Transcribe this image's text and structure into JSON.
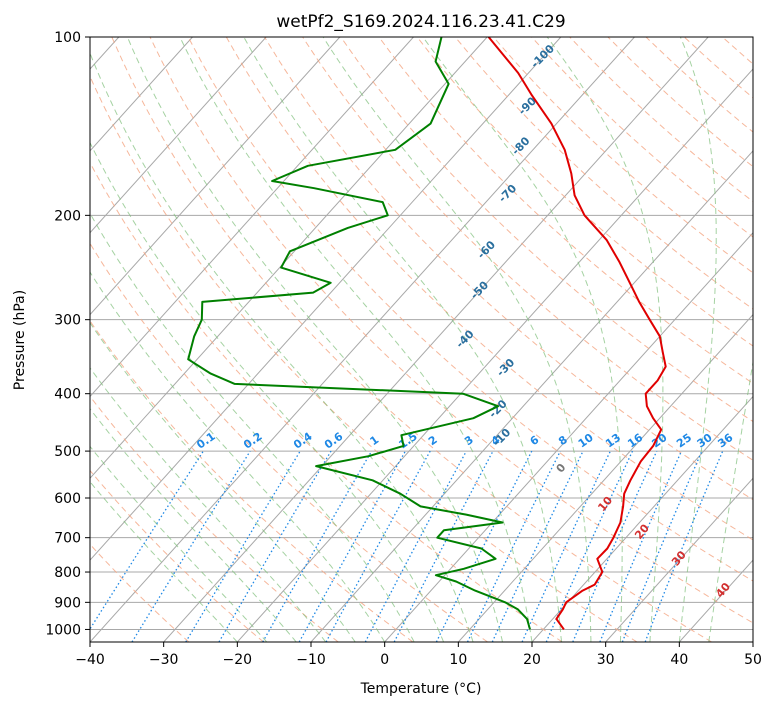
{
  "chart_data": {
    "type": "line",
    "subtype": "skew-T log-P diagram",
    "title": "wetPf2_S169.2024.116.23.41.C29",
    "xlabel": "Temperature (°C)",
    "ylabel": "Pressure (hPa)",
    "xlim": [
      -40,
      50
    ],
    "ylim": [
      1050,
      100
    ],
    "y_scale": "log",
    "grid": true,
    "x_ticks": [
      -40,
      -30,
      -20,
      -10,
      0,
      10,
      20,
      30,
      40,
      50
    ],
    "x_tick_labels": [
      "−40",
      "−30",
      "−20",
      "−10",
      "0",
      "10",
      "20",
      "30",
      "40",
      "50"
    ],
    "y_ticks": [
      1000,
      900,
      800,
      700,
      600,
      500,
      400,
      300,
      200,
      100
    ],
    "y_tick_labels": [
      "1000",
      "900",
      "800",
      "700",
      "600",
      "500",
      "400",
      "300",
      "200",
      "100"
    ],
    "series": [
      {
        "color": "#e00000",
        "points": [
          [
            1000,
            22.8
          ],
          [
            960,
            20.5
          ],
          [
            925,
            20.2
          ],
          [
            900,
            19.8
          ],
          [
            860,
            20.6
          ],
          [
            840,
            21.5
          ],
          [
            800,
            21.0
          ],
          [
            760,
            18.7
          ],
          [
            730,
            18.8
          ],
          [
            700,
            18.3
          ],
          [
            660,
            17.4
          ],
          [
            620,
            15.8
          ],
          [
            590,
            14.4
          ],
          [
            560,
            13.6
          ],
          [
            520,
            12.7
          ],
          [
            490,
            12.5
          ],
          [
            460,
            11.6
          ],
          [
            440,
            9.1
          ],
          [
            420,
            6.8
          ],
          [
            400,
            5.1
          ],
          [
            380,
            5.1
          ],
          [
            360,
            4.5
          ],
          [
            340,
            2.3
          ],
          [
            320,
            0.0
          ],
          [
            300,
            -3.4
          ],
          [
            280,
            -7.0
          ],
          [
            260,
            -10.6
          ],
          [
            240,
            -14.5
          ],
          [
            220,
            -19.0
          ],
          [
            200,
            -25.0
          ],
          [
            185,
            -28.8
          ],
          [
            170,
            -31.9
          ],
          [
            155,
            -35.7
          ],
          [
            140,
            -40.7
          ],
          [
            125,
            -47.0
          ],
          [
            115,
            -51.4
          ],
          [
            100,
            -59.8
          ]
        ]
      },
      {
        "color": "#008000",
        "points": [
          [
            1000,
            18.2
          ],
          [
            960,
            16.5
          ],
          [
            925,
            14.1
          ],
          [
            900,
            11.5
          ],
          [
            860,
            6.0
          ],
          [
            830,
            2.3
          ],
          [
            810,
            -1.2
          ],
          [
            790,
            1.8
          ],
          [
            760,
            4.9
          ],
          [
            730,
            1.7
          ],
          [
            700,
            -5.6
          ],
          [
            680,
            -5.6
          ],
          [
            660,
            1.4
          ],
          [
            640,
            -4.5
          ],
          [
            620,
            -11.7
          ],
          [
            590,
            -16.0
          ],
          [
            560,
            -21.4
          ],
          [
            530,
            -30.8
          ],
          [
            510,
            -24.9
          ],
          [
            490,
            -21.4
          ],
          [
            470,
            -23.0
          ],
          [
            440,
            -15.3
          ],
          [
            420,
            -13.4
          ],
          [
            400,
            -19.7
          ],
          [
            385,
            -51.9
          ],
          [
            370,
            -56.4
          ],
          [
            350,
            -61.2
          ],
          [
            320,
            -63.2
          ],
          [
            300,
            -64.2
          ],
          [
            280,
            -66.3
          ],
          [
            270,
            -52.4
          ],
          [
            260,
            -51.2
          ],
          [
            245,
            -59.8
          ],
          [
            230,
            -60.6
          ],
          [
            210,
            -55.6
          ],
          [
            200,
            -51.7
          ],
          [
            190,
            -54.0
          ],
          [
            180,
            -65.0
          ],
          [
            175,
            -71.6
          ],
          [
            165,
            -68.6
          ],
          [
            155,
            -58.7
          ],
          [
            140,
            -57.1
          ],
          [
            120,
            -59.5
          ],
          [
            110,
            -64.0
          ],
          [
            100,
            -66.2
          ]
        ]
      }
    ],
    "dry_adiabat_labels": [
      "-100",
      "-90",
      "-80",
      "-70",
      "-60",
      "-50",
      "-40",
      "-30",
      "-20",
      "-10"
    ],
    "moist_adiabat_labels": [
      "0",
      "10",
      "20",
      "30",
      "40"
    ],
    "mixing_ratio_labels": [
      "0.1",
      "0.2",
      "0.4",
      "0.6",
      "1",
      "1.5",
      "2",
      "3",
      "4",
      "6",
      "8",
      "10",
      "13",
      "16",
      "20",
      "25",
      "30",
      "36"
    ],
    "colors": {
      "temperature": "#e00000",
      "dewpoint": "#008000",
      "dry_adiabats": "#f4a582",
      "moist_adiabats": "#7fbf7b",
      "mixing_ratio": "#1e88e5",
      "isotherms": "#999999"
    }
  }
}
